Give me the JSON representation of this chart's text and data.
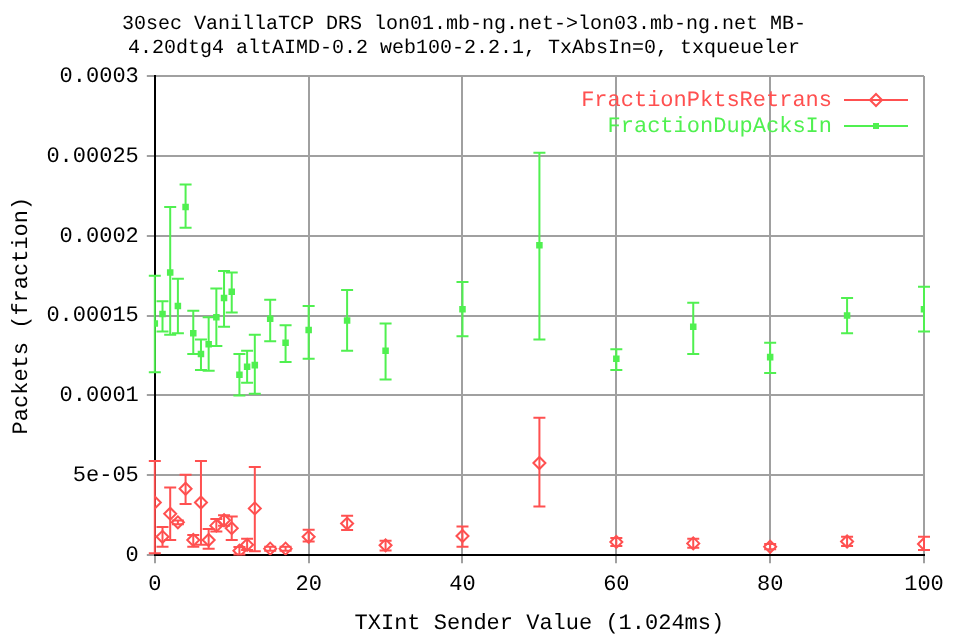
{
  "chart_data": {
    "type": "scatter",
    "title": "30sec VanillaTCP DRS lon01.mb-ng.net->lon03.mb-ng.net MB-\n4.20dtg4 altAIMD-0.2 web100-2.2.1, TxAbsIn=0, txqueueler",
    "xlabel": "TXInt Sender Value (1.024ms)",
    "ylabel": "Packets (fraction)",
    "xlim": [
      0,
      100
    ],
    "xticks": [
      0,
      20,
      40,
      60,
      80,
      100
    ],
    "ylim": [
      0,
      0.0003
    ],
    "yticks": [
      0,
      {
        "value": 5e-05,
        "label": "5e-05"
      },
      0.0001,
      0.00015,
      0.0002,
      0.00025,
      0.0003
    ],
    "grid": true,
    "legend": "top right",
    "line_style": "solid",
    "series": [
      {
        "name": "FractionPktsRetrans",
        "color": "#ff5050",
        "marker": "diamond",
        "x": [
          0,
          1,
          2,
          3,
          4,
          5,
          6,
          7,
          8,
          9,
          10,
          11,
          12,
          13,
          15,
          17,
          20,
          25,
          30,
          40,
          50,
          60,
          70,
          80,
          90,
          100
        ],
        "values": [
          3.3e-05,
          1.15e-05,
          2.6e-05,
          2.06e-05,
          4.16e-05,
          9.5e-06,
          3.3e-05,
          9.5e-06,
          1.85e-05,
          2.19e-05,
          1.69e-05,
          2.8e-06,
          6.5e-06,
          2.93e-05,
          4.1e-06,
          4.1e-06,
          1.15e-05,
          1.98e-05,
          6.2e-06,
          1.2e-05,
          5.77e-05,
          8.3e-06,
          7.4e-06,
          5.3e-06,
          8.6e-06,
          7e-06
        ],
        "errors": [
          [
            1.2e-06,
            5.89e-05
          ],
          [
            5.3e-06,
            1.77e-05
          ],
          [
            9.5e-06,
            4.24e-05
          ],
          [
            1.94e-05,
            2.18e-05
          ],
          [
            3.21e-05,
            5.03e-05
          ],
          [
            5.3e-06,
            1.27e-05
          ],
          [
            6.5e-06,
            5.89e-05
          ],
          [
            4.1e-06,
            1.64e-05
          ],
          [
            1.48e-05,
            2.26e-05
          ],
          [
            1.85e-05,
            2.5e-05
          ],
          [
            9.5e-06,
            2.43e-05
          ],
          [
            5e-07,
            5.2e-06
          ],
          [
            3.3e-06,
            1.03e-05
          ],
          [
            2.5e-06,
            5.52e-05
          ],
          [
            2.8e-06,
            5.3e-06
          ],
          [
            2.8e-06,
            5.3e-06
          ],
          [
            8.6e-06,
            1.6e-05
          ],
          [
            1.57e-05,
            2.47e-05
          ],
          [
            3e-06,
            9e-06
          ],
          [
            5.3e-06,
            1.8e-05
          ],
          [
            3.05e-05,
            8.6e-05
          ],
          [
            5.8e-06,
            1.07e-05
          ],
          [
            4.6e-06,
            1.03e-05
          ],
          [
            3.7e-06,
            7e-06
          ],
          [
            5.8e-06,
            1.15e-05
          ],
          [
            3.3e-06,
            1.15e-05
          ]
        ]
      },
      {
        "name": "FractionDupAcksIn",
        "color": "#50f050",
        "marker": "square",
        "x": [
          0,
          1,
          2,
          3,
          4,
          5,
          6,
          7,
          8,
          9,
          10,
          11,
          12,
          13,
          15,
          17,
          20,
          25,
          30,
          40,
          50,
          60,
          70,
          80,
          90,
          100
        ],
        "values": [
          0.000145,
          0.000151,
          0.000177,
          0.000156,
          0.000218,
          0.000139,
          0.000126,
          0.000132,
          0.000149,
          0.000161,
          0.000165,
          0.000113,
          0.000118,
          0.000119,
          0.000148,
          0.000133,
          0.000141,
          0.000147,
          0.000128,
          0.000154,
          0.000194,
          0.000123,
          0.000143,
          0.000124,
          0.00015,
          0.000154
        ],
        "errors": [
          [
            0.0001145,
            0.000175
          ],
          [
            0.00014,
            0.000159
          ],
          [
            0.000138,
            0.000218
          ],
          [
            0.000139,
            0.000173
          ],
          [
            0.000205,
            0.000232
          ],
          [
            0.000126,
            0.000153
          ],
          [
            0.000116,
            0.000135
          ],
          [
            0.0001155,
            0.000149
          ],
          [
            0.000131,
            0.000167
          ],
          [
            0.000143,
            0.000178
          ],
          [
            0.000152,
            0.000177
          ],
          [
            0.0001,
            0.000126
          ],
          [
            0.000108,
            0.000128
          ],
          [
            0.000101,
            0.000138
          ],
          [
            0.000134,
            0.00016
          ],
          [
            0.000121,
            0.000144
          ],
          [
            0.000123,
            0.000156
          ],
          [
            0.000128,
            0.000166
          ],
          [
            0.00011,
            0.000145
          ],
          [
            0.000137,
            0.000171
          ],
          [
            0.000135,
            0.000252
          ],
          [
            0.000116,
            0.000129
          ],
          [
            0.000126,
            0.000158
          ],
          [
            0.000114,
            0.000133
          ],
          [
            0.000139,
            0.000161
          ],
          [
            0.00014,
            0.000168
          ]
        ]
      }
    ]
  }
}
